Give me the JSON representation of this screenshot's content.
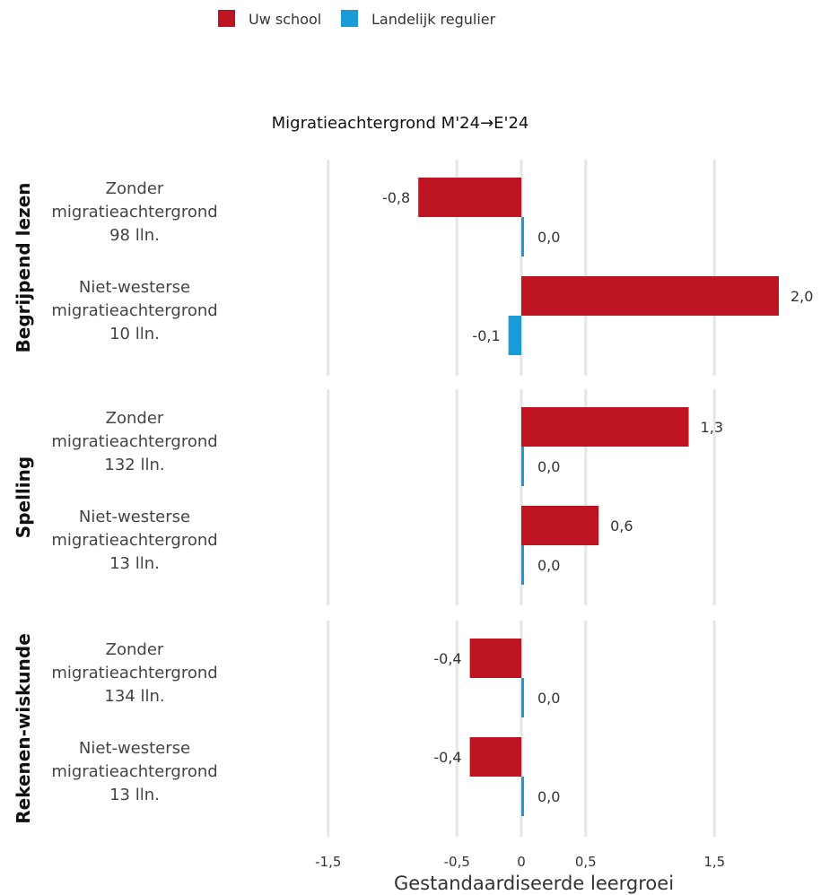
{
  "chart_data": {
    "type": "bar",
    "orientation": "horizontal",
    "subtitle": "Migratieachtergrond M'24→E'24",
    "xlabel": "Gestandaardiseerde leergroei",
    "xlim": [
      -2.0,
      2.0
    ],
    "xticks": [
      -1.5,
      -0.5,
      0,
      0.5,
      1.5
    ],
    "xtick_labels": [
      "-1,5",
      "-0,5",
      "0",
      "0,5",
      "1,5"
    ],
    "grid": true,
    "legend_position": "top",
    "series": [
      {
        "name": "Uw school",
        "color": "#be1421"
      },
      {
        "name": "Landelijk regulier",
        "color": "#1a9ad6"
      }
    ],
    "facets": [
      {
        "name": "Begrijpend lezen",
        "categories": [
          {
            "label": [
              "Zonder",
              "migratieachtergrond",
              "98 lln."
            ],
            "values": [
              -0.8,
              0.0
            ],
            "value_labels": [
              "-0,8",
              "0,0"
            ]
          },
          {
            "label": [
              "Niet-westerse",
              "migratieachtergrond",
              "10 lln."
            ],
            "values": [
              2.0,
              -0.1
            ],
            "value_labels": [
              "2,0",
              "-0,1"
            ]
          }
        ]
      },
      {
        "name": "Spelling",
        "categories": [
          {
            "label": [
              "Zonder",
              "migratieachtergrond",
              "132 lln."
            ],
            "values": [
              1.3,
              0.0
            ],
            "value_labels": [
              "1,3",
              "0,0"
            ]
          },
          {
            "label": [
              "Niet-westerse",
              "migratieachtergrond",
              "13 lln."
            ],
            "values": [
              0.6,
              0.0
            ],
            "value_labels": [
              "0,6",
              "0,0"
            ]
          }
        ]
      },
      {
        "name": "Rekenen-wiskunde",
        "categories": [
          {
            "label": [
              "Zonder",
              "migratieachtergrond",
              "134 lln."
            ],
            "values": [
              -0.4,
              0.0
            ],
            "value_labels": [
              "-0,4",
              "0,0"
            ]
          },
          {
            "label": [
              "Niet-westerse",
              "migratieachtergrond",
              "13 lln."
            ],
            "values": [
              -0.4,
              0.0
            ],
            "value_labels": [
              "-0,4",
              "0,0"
            ]
          }
        ]
      }
    ]
  }
}
